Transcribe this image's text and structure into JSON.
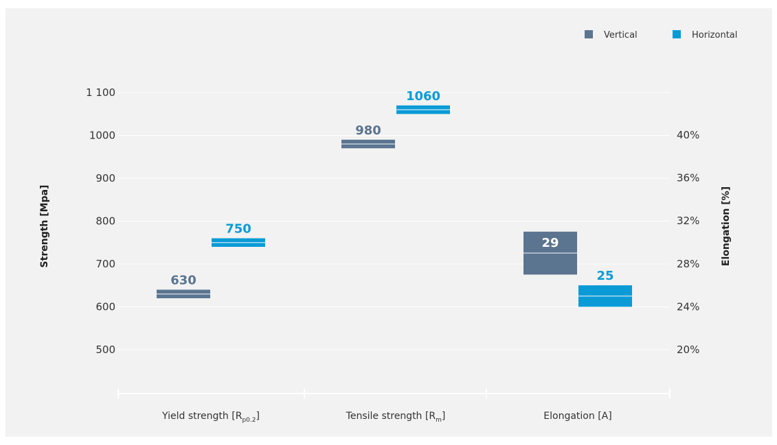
{
  "chart_data": {
    "type": "floating-bar",
    "colors": {
      "Vertical": "#5b7490",
      "Horizontal": "#0a9bd6"
    },
    "legend": {
      "position": "top-right",
      "items": [
        "Vertical",
        "Horizontal"
      ]
    },
    "categories": [
      {
        "name": "Yield strength [R",
        "sub": "p0.2",
        "close": "]"
      },
      {
        "name": "Tensile strength [R",
        "sub": "m",
        "close": "]"
      },
      {
        "name": "Elongation [A]",
        "sub": "",
        "close": ""
      }
    ],
    "y_left": {
      "label": "Strength [Mpa]",
      "ticks": [
        500,
        600,
        700,
        800,
        900,
        1000,
        1100
      ],
      "tick_labels": [
        "500",
        "600",
        "700",
        "800",
        "900",
        "1000",
        "1 100"
      ],
      "range": [
        400,
        1120
      ],
      "grid": true
    },
    "y_right": {
      "label": "Elongation [%]",
      "ticks": [
        20,
        24,
        28,
        32,
        36,
        40
      ],
      "tick_labels": [
        "20%",
        "24%",
        "28%",
        "32%",
        "36%",
        "40%"
      ]
    },
    "series": [
      {
        "name": "Vertical",
        "bars": [
          {
            "category": 0,
            "axis": "left",
            "low": 620,
            "high": 640,
            "mid": 630,
            "label": "630"
          },
          {
            "category": 1,
            "axis": "left",
            "low": 970,
            "high": 990,
            "mid": 980,
            "label": "980"
          },
          {
            "category": 2,
            "axis": "right",
            "low": 27,
            "high": 31,
            "mid": 29,
            "label": "29"
          }
        ]
      },
      {
        "name": "Horizontal",
        "bars": [
          {
            "category": 0,
            "axis": "left",
            "low": 740,
            "high": 760,
            "mid": 750,
            "label": "750"
          },
          {
            "category": 1,
            "axis": "left",
            "low": 1050,
            "high": 1070,
            "mid": 1060,
            "label": "1060"
          },
          {
            "category": 2,
            "axis": "right",
            "low": 24,
            "high": 26,
            "mid": 25,
            "label": "25"
          }
        ]
      }
    ]
  }
}
